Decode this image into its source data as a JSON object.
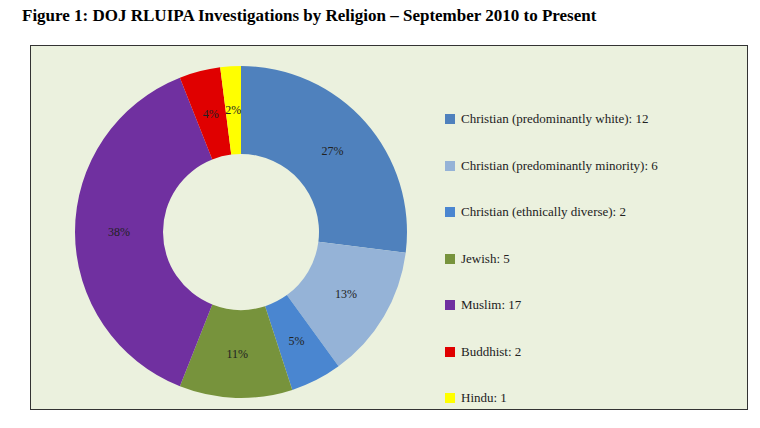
{
  "chart_data": {
    "type": "donut",
    "title": "Figure 1: DOJ RLUIPA Investigations by Religion – September 2010 to Present",
    "categories": [
      "Christian (predominantly white): 12",
      "Christian (predominantly minority): 6",
      "Christian (ethnically diverse): 2",
      "Jewish: 5",
      "Muslim: 17",
      "Buddhist: 2",
      "Hindu: 1"
    ],
    "values": [
      27,
      13,
      5,
      11,
      38,
      4,
      2
    ],
    "value_labels": [
      "27%",
      "13%",
      "5%",
      "11%",
      "38%",
      "4%",
      "2%"
    ],
    "colors": [
      "#4f81bd",
      "#95b3d7",
      "#4a86d0",
      "#77933c",
      "#7030a0",
      "#e00000",
      "#ffff00"
    ],
    "data_labels": true,
    "legend": "right"
  }
}
